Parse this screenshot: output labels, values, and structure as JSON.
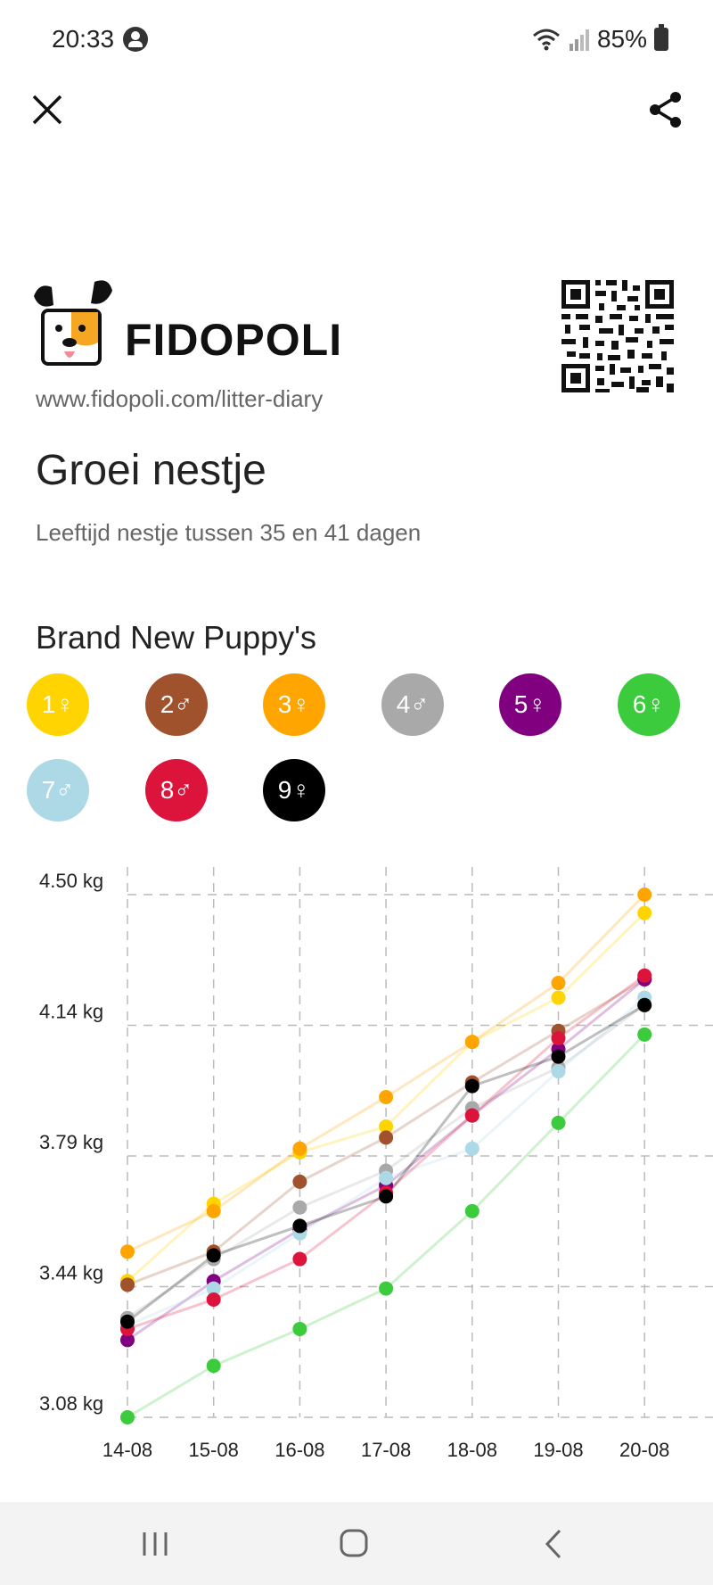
{
  "status_bar": {
    "time": "20:33",
    "battery": "85%"
  },
  "top_bar": {
    "close_icon": "close-icon",
    "share_icon": "share-icon"
  },
  "brand": {
    "name": "FIDOPOLI",
    "url": "www.fidopoli.com/litter-diary"
  },
  "page": {
    "title": "Groei nestje",
    "subtitle": "Leeftijd nestje tussen 35 en 41 dagen"
  },
  "litter": {
    "name": "Brand New Puppy's",
    "puppies": [
      {
        "label": "1♀",
        "color": "#FFD400"
      },
      {
        "label": "2♂",
        "color": "#A0522D"
      },
      {
        "label": "3♀",
        "color": "#FFA500"
      },
      {
        "label": "4♂",
        "color": "#A9A9A9"
      },
      {
        "label": "5♀",
        "color": "#800080"
      },
      {
        "label": "6♀",
        "color": "#3CCB3C"
      },
      {
        "label": "7♂",
        "color": "#ADD8E6"
      },
      {
        "label": "8♂",
        "color": "#DC143C"
      },
      {
        "label": "9♀",
        "color": "#000000"
      }
    ]
  },
  "chart_data": {
    "type": "line",
    "categories": [
      "14-08",
      "15-08",
      "16-08",
      "17-08",
      "18-08",
      "19-08",
      "20-08"
    ],
    "y_ticks": [
      "3.08 kg",
      "3.44 kg",
      "3.79 kg",
      "4.14 kg",
      "4.50 kg"
    ],
    "ylim": [
      3.08,
      4.5
    ],
    "grid": true,
    "series": [
      {
        "name": "1♀",
        "color": "#FFD400",
        "values": [
          3.45,
          3.66,
          3.8,
          3.87,
          4.1,
          4.22,
          4.45
        ]
      },
      {
        "name": "2♂",
        "color": "#A0522D",
        "values": [
          3.44,
          3.53,
          3.72,
          3.84,
          3.99,
          4.13,
          4.27
        ]
      },
      {
        "name": "3♀",
        "color": "#FFA500",
        "values": [
          3.53,
          3.64,
          3.81,
          3.95,
          4.1,
          4.26,
          4.5
        ]
      },
      {
        "name": "4♂",
        "color": "#A9A9A9",
        "values": [
          3.35,
          3.51,
          3.65,
          3.75,
          3.92,
          4.03,
          4.2
        ]
      },
      {
        "name": "5♀",
        "color": "#800080",
        "values": [
          3.29,
          3.45,
          3.59,
          3.71,
          3.9,
          4.08,
          4.27
        ]
      },
      {
        "name": "6♀",
        "color": "#3CCB3C",
        "values": [
          3.08,
          3.22,
          3.32,
          3.43,
          3.64,
          3.88,
          4.12
        ]
      },
      {
        "name": "7♂",
        "color": "#ADD8E6",
        "values": [
          3.33,
          3.43,
          3.58,
          3.73,
          3.81,
          4.02,
          4.22
        ]
      },
      {
        "name": "8♂",
        "color": "#DC143C",
        "values": [
          3.32,
          3.4,
          3.51,
          3.69,
          3.9,
          4.11,
          4.28
        ]
      },
      {
        "name": "9♀",
        "color": "#000000",
        "values": [
          3.34,
          3.52,
          3.6,
          3.68,
          3.98,
          4.06,
          4.2
        ]
      }
    ]
  }
}
